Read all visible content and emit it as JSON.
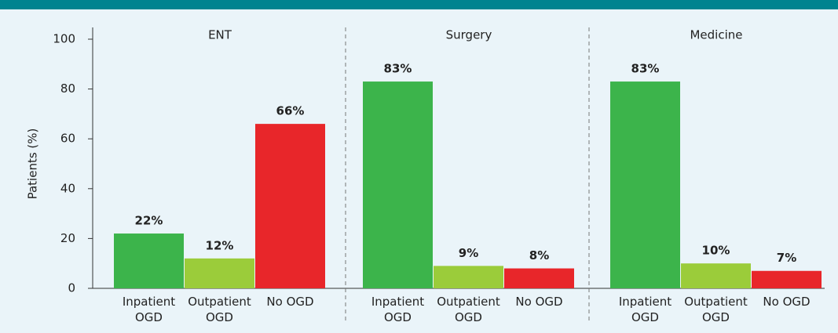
{
  "chart_data": {
    "type": "bar",
    "ylabel": "Patients (%)",
    "ylim": [
      0,
      100
    ],
    "yticks": [
      0,
      20,
      40,
      60,
      80,
      100
    ],
    "categories": [
      "Inpatient OGD",
      "Outpatient OGD",
      "No OGD"
    ],
    "colors": [
      "#3cb44b",
      "#9bcc3a",
      "#e8262a"
    ],
    "panels": [
      {
        "title": "ENT",
        "values": [
          22,
          12,
          66
        ],
        "value_labels": [
          "22%",
          "12%",
          "66%"
        ]
      },
      {
        "title": "Surgery",
        "values": [
          83,
          9,
          8
        ],
        "value_labels": [
          "83%",
          "9%",
          "8%"
        ]
      },
      {
        "title": "Medicine",
        "values": [
          83,
          10,
          7
        ],
        "value_labels": [
          "83%",
          "10%",
          "7%"
        ]
      }
    ]
  }
}
